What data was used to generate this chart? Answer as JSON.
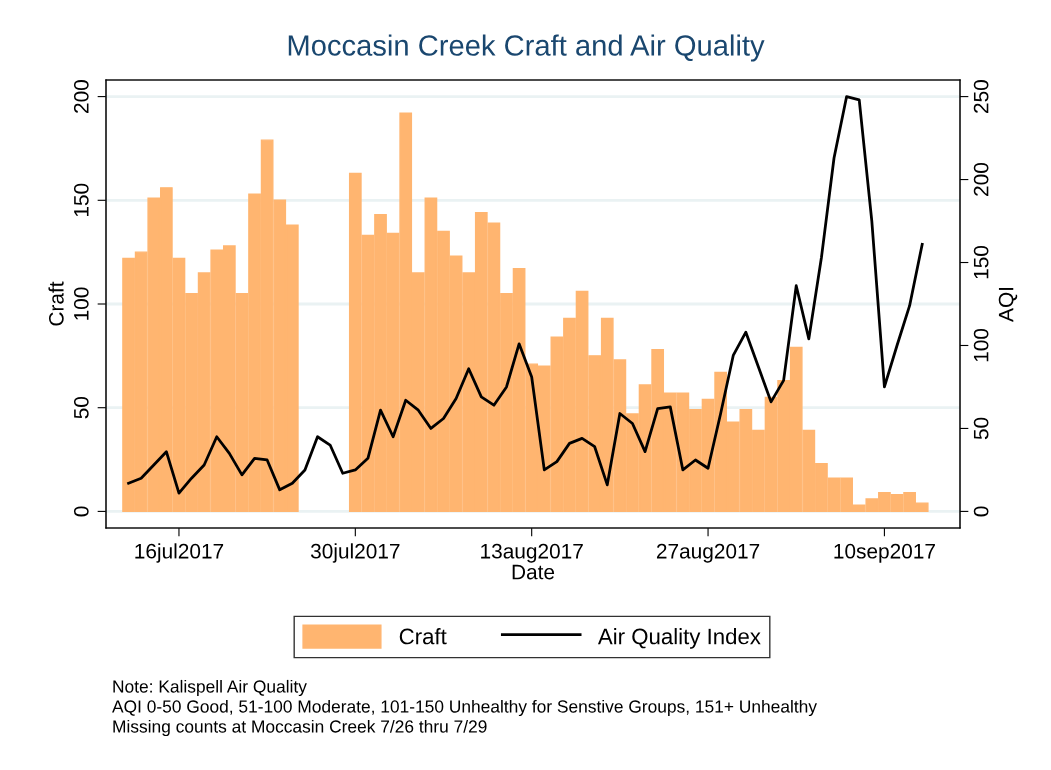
{
  "chart_data": {
    "type": "bar",
    "title": "Moccasin Creek Craft and Air Quality",
    "xlabel": "Date",
    "ylabel": "Craft",
    "y2label": "AQI",
    "x": [
      "2017-07-12",
      "2017-07-13",
      "2017-07-14",
      "2017-07-15",
      "2017-07-16",
      "2017-07-17",
      "2017-07-18",
      "2017-07-19",
      "2017-07-20",
      "2017-07-21",
      "2017-07-22",
      "2017-07-23",
      "2017-07-24",
      "2017-07-25",
      "2017-07-26",
      "2017-07-27",
      "2017-07-28",
      "2017-07-29",
      "2017-07-30",
      "2017-07-31",
      "2017-08-01",
      "2017-08-02",
      "2017-08-03",
      "2017-08-04",
      "2017-08-05",
      "2017-08-06",
      "2017-08-07",
      "2017-08-08",
      "2017-08-09",
      "2017-08-10",
      "2017-08-11",
      "2017-08-12",
      "2017-08-13",
      "2017-08-14",
      "2017-08-15",
      "2017-08-16",
      "2017-08-17",
      "2017-08-18",
      "2017-08-19",
      "2017-08-20",
      "2017-08-21",
      "2017-08-22",
      "2017-08-23",
      "2017-08-24",
      "2017-08-25",
      "2017-08-26",
      "2017-08-27",
      "2017-08-28",
      "2017-08-29",
      "2017-08-30",
      "2017-08-31",
      "2017-09-01",
      "2017-09-02",
      "2017-09-03",
      "2017-09-04",
      "2017-09-05",
      "2017-09-06",
      "2017-09-07",
      "2017-09-08",
      "2017-09-09",
      "2017-09-10",
      "2017-09-11",
      "2017-09-12",
      "2017-09-13"
    ],
    "series": [
      {
        "name": "Craft",
        "color": "#ffb570",
        "values": [
          122,
          125,
          151,
          156,
          122,
          105,
          115,
          126,
          128,
          105,
          153,
          179,
          150,
          138,
          null,
          null,
          null,
          null,
          163,
          133,
          143,
          134,
          192,
          115,
          151,
          135,
          123,
          115,
          144,
          139,
          105,
          117,
          71,
          70,
          84,
          93,
          106,
          75,
          93,
          73,
          47,
          61,
          78,
          57,
          57,
          49,
          54,
          67,
          43,
          49,
          39,
          55,
          63,
          79,
          39,
          23,
          16,
          16,
          3,
          6,
          9,
          8,
          9,
          4
        ]
      },
      {
        "name": "Air Quality Index",
        "type": "line",
        "axis": "y2",
        "color": "#000000",
        "values": [
          17,
          20,
          28,
          36,
          11,
          20,
          28,
          45,
          35,
          22,
          32,
          31,
          13,
          17,
          25,
          45,
          40,
          23,
          25,
          32,
          61,
          45,
          67,
          61,
          50,
          56,
          68,
          86,
          69,
          64,
          75,
          101,
          81,
          25,
          30,
          41,
          44,
          39,
          16,
          59,
          53,
          36,
          62,
          63,
          25,
          31,
          26,
          59,
          94,
          108,
          87,
          66,
          79,
          136,
          104,
          153,
          213,
          250,
          248,
          175,
          75,
          100,
          124,
          161
        ]
      }
    ],
    "xlim": [
      "2017-07-10T05:00",
      "2017-09-16T00:00"
    ],
    "xticks": [
      {
        "value": "2017-07-16",
        "label": "16jul2017"
      },
      {
        "value": "2017-07-30",
        "label": "30jul2017"
      },
      {
        "value": "2017-08-13",
        "label": "13aug2017"
      },
      {
        "value": "2017-08-27",
        "label": "27aug2017"
      },
      {
        "value": "2017-09-10",
        "label": "10sep2017"
      }
    ],
    "ylim": [
      -8,
      208
    ],
    "yticks": [
      0,
      50,
      100,
      150,
      200
    ],
    "y2lim": [
      -10,
      260
    ],
    "y2ticks": [
      0,
      50,
      100,
      150,
      200,
      250
    ],
    "grid": "y",
    "legend": "bottom",
    "line_style": "solid",
    "marker": "none",
    "annotations": [
      "Note: Kalispell Air Quality",
      "AQI 0-50 Good, 51-100 Moderate, 101-150 Unhealthy for Senstive Groups, 151+ Unhealthy",
      "Missing counts at Moccasin Creek 7/26 thru 7/29"
    ]
  }
}
